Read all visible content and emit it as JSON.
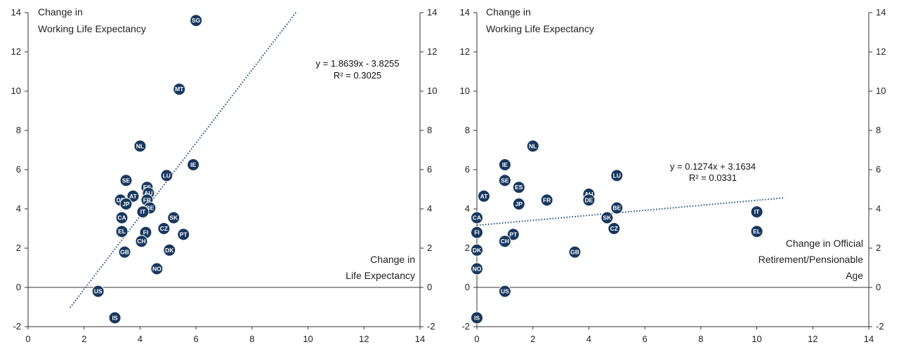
{
  "colors": {
    "point": "#17375e",
    "trend": "#1f4e79",
    "axis": "#333333"
  },
  "chart_data": [
    {
      "type": "scatter",
      "title": "",
      "ylabel_lines": [
        "Change in",
        "Working Life Expectancy"
      ],
      "xlabel_lines": [
        "Change in",
        "Life Expectancy"
      ],
      "xlim": [
        0,
        14
      ],
      "ylim": [
        -2,
        14
      ],
      "x_ticks": [
        "0",
        "2",
        "4",
        "6",
        "8",
        "10",
        "12",
        "14"
      ],
      "y_ticks": [
        "-2",
        "0",
        "2",
        "4",
        "6",
        "8",
        "10",
        "12",
        "14"
      ],
      "trendline": {
        "equation": "y = 1.8639x - 3.8255",
        "r2": "R² = 0.3025",
        "slope": 1.8639,
        "intercept": -3.8255,
        "x_range": [
          1.5,
          9.6
        ]
      },
      "points": [
        {
          "label": "SG",
          "x": 6.0,
          "y": 13.6
        },
        {
          "label": "MT",
          "x": 5.4,
          "y": 10.1
        },
        {
          "label": "NL",
          "x": 4.0,
          "y": 7.2
        },
        {
          "label": "IE",
          "x": 5.9,
          "y": 6.25
        },
        {
          "label": "LU",
          "x": 4.95,
          "y": 5.7
        },
        {
          "label": "SE",
          "x": 3.5,
          "y": 5.45
        },
        {
          "label": "ES",
          "x": 4.25,
          "y": 5.1
        },
        {
          "label": "AT",
          "x": 3.75,
          "y": 4.65
        },
        {
          "label": "AU",
          "x": 4.3,
          "y": 4.8
        },
        {
          "label": "FR",
          "x": 4.25,
          "y": 4.45
        },
        {
          "label": "DE",
          "x": 3.3,
          "y": 4.45
        },
        {
          "label": "JP",
          "x": 3.5,
          "y": 4.25
        },
        {
          "label": "BE",
          "x": 4.35,
          "y": 4.05
        },
        {
          "label": "IT",
          "x": 4.1,
          "y": 3.85
        },
        {
          "label": "CA",
          "x": 3.35,
          "y": 3.55
        },
        {
          "label": "SK",
          "x": 5.2,
          "y": 3.55
        },
        {
          "label": "CZ",
          "x": 4.85,
          "y": 3.0
        },
        {
          "label": "EL",
          "x": 3.35,
          "y": 2.85
        },
        {
          "label": "FI",
          "x": 4.2,
          "y": 2.8
        },
        {
          "label": "PT",
          "x": 5.55,
          "y": 2.7
        },
        {
          "label": "CH",
          "x": 4.05,
          "y": 2.35
        },
        {
          "label": "DK",
          "x": 5.05,
          "y": 1.9
        },
        {
          "label": "GB",
          "x": 3.45,
          "y": 1.8
        },
        {
          "label": "NO",
          "x": 4.6,
          "y": 0.95
        },
        {
          "label": "US",
          "x": 2.5,
          "y": -0.2
        },
        {
          "label": "IS",
          "x": 3.1,
          "y": -1.55
        }
      ]
    },
    {
      "type": "scatter",
      "title": "",
      "ylabel_lines": [
        "Change in",
        "Working Life Expectancy"
      ],
      "xlabel_lines": [
        "Change in Official",
        "Retirement/Pensionable",
        "Age"
      ],
      "xlim": [
        0,
        14
      ],
      "ylim": [
        -2,
        14
      ],
      "x_ticks": [
        "0",
        "2",
        "4",
        "6",
        "8",
        "10",
        "12",
        "14"
      ],
      "y_ticks": [
        "-2",
        "0",
        "2",
        "4",
        "6",
        "8",
        "10",
        "12",
        "14"
      ],
      "trendline": {
        "equation": "y = 0.1274x + 3.1634",
        "r2": "R² = 0.0331",
        "slope": 0.1274,
        "intercept": 3.1634,
        "x_range": [
          0,
          11.0
        ]
      },
      "points": [
        {
          "label": "NL",
          "x": 2.0,
          "y": 7.2
        },
        {
          "label": "IE",
          "x": 1.0,
          "y": 6.25
        },
        {
          "label": "LU",
          "x": 5.0,
          "y": 5.7
        },
        {
          "label": "SE",
          "x": 1.0,
          "y": 5.45
        },
        {
          "label": "ES",
          "x": 1.5,
          "y": 5.1
        },
        {
          "label": "AT",
          "x": 0.25,
          "y": 4.65
        },
        {
          "label": "AU",
          "x": 4.0,
          "y": 4.75
        },
        {
          "label": "DE",
          "x": 4.0,
          "y": 4.45
        },
        {
          "label": "FR",
          "x": 2.5,
          "y": 4.45
        },
        {
          "label": "JP",
          "x": 1.5,
          "y": 4.25
        },
        {
          "label": "BE",
          "x": 5.0,
          "y": 4.05
        },
        {
          "label": "IT",
          "x": 10.0,
          "y": 3.85
        },
        {
          "label": "CA",
          "x": 0.0,
          "y": 3.55
        },
        {
          "label": "SK",
          "x": 4.65,
          "y": 3.55
        },
        {
          "label": "CZ",
          "x": 4.9,
          "y": 3.0
        },
        {
          "label": "FI",
          "x": 0.0,
          "y": 2.8
        },
        {
          "label": "EL",
          "x": 10.0,
          "y": 2.85
        },
        {
          "label": "PT",
          "x": 1.3,
          "y": 2.7
        },
        {
          "label": "CH",
          "x": 1.0,
          "y": 2.35
        },
        {
          "label": "DK",
          "x": 0.0,
          "y": 1.9
        },
        {
          "label": "GB",
          "x": 3.5,
          "y": 1.8
        },
        {
          "label": "NO",
          "x": 0.0,
          "y": 0.95
        },
        {
          "label": "US",
          "x": 1.0,
          "y": -0.2
        },
        {
          "label": "IS",
          "x": 0.0,
          "y": -1.55
        }
      ]
    }
  ]
}
